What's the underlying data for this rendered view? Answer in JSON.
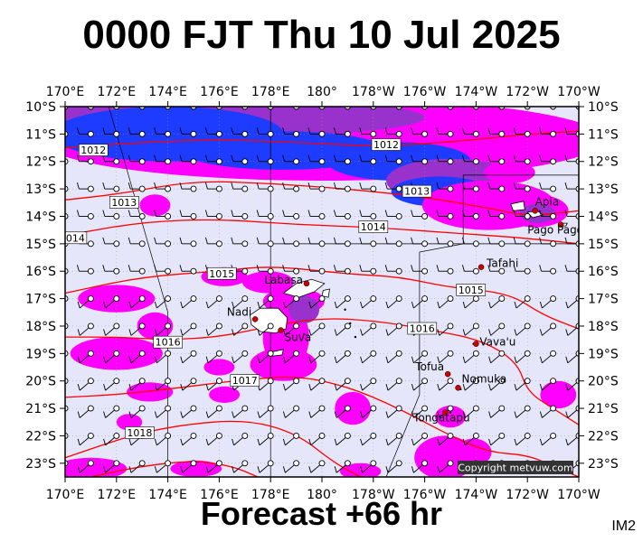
{
  "title": "0000 FJT Thu 10 Jul 2025",
  "forecast_label": "Forecast +66 hr",
  "corner_label": "IM2",
  "copyright": "Copyright metvuw.com",
  "colors": {
    "sea": "#e6e6fa",
    "rain_light": "#ff00ff",
    "rain_medium": "#9932cc",
    "rain_heavy": "#1e3cff",
    "isobar": "#ff0000",
    "land": "#ffffff",
    "place_dot": "#cc0000"
  },
  "map": {
    "lon_ticks": [
      "170°E",
      "172°E",
      "174°E",
      "176°E",
      "178°E",
      "180°",
      "178°W",
      "176°W",
      "174°W",
      "172°W",
      "170°W"
    ],
    "lat_ticks": [
      "10°S",
      "11°S",
      "12°S",
      "13°S",
      "14°S",
      "15°S",
      "16°S",
      "17°S",
      "18°S",
      "19°S",
      "20°S",
      "21°S",
      "22°S",
      "23°S"
    ],
    "extent": {
      "lon_west": 170,
      "lon_east": 190,
      "lat_north": -10,
      "lat_south": -23.5
    },
    "isobars": [
      {
        "label": "1012",
        "label_lon": 171.1,
        "label_lat": -11.6
      },
      {
        "label": "1012",
        "label_lon": 182.5,
        "label_lat": -11.4
      },
      {
        "label": "1013",
        "label_lon": 172.3,
        "label_lat": -13.5
      },
      {
        "label": "1013",
        "label_lon": 183.7,
        "label_lat": -13.1
      },
      {
        "label": "1014",
        "label_lon": 182.0,
        "label_lat": -14.4
      },
      {
        "label": "014",
        "label_lon": 170.4,
        "label_lat": -14.8
      },
      {
        "label": "1015",
        "label_lon": 176.1,
        "label_lat": -16.1
      },
      {
        "label": "1015",
        "label_lon": 185.8,
        "label_lat": -16.7
      },
      {
        "label": "1016",
        "label_lon": 174.0,
        "label_lat": -18.6
      },
      {
        "label": "1016",
        "label_lon": 183.9,
        "label_lat": -18.1
      },
      {
        "label": "1017",
        "label_lon": 177.0,
        "label_lat": -20.0
      },
      {
        "label": "1018",
        "label_lon": 172.9,
        "label_lat": -21.9
      }
    ],
    "places": [
      {
        "name": "Apia",
        "lon": 188.3,
        "lat": -13.8
      },
      {
        "name": "Pago Pago",
        "lon": 189.3,
        "lat": -14.3
      },
      {
        "name": "Tafahi",
        "lon": 186.2,
        "lat": -15.85
      },
      {
        "name": "Labasa",
        "lon": 179.4,
        "lat": -16.45
      },
      {
        "name": "Nadi",
        "lon": 177.4,
        "lat": -17.75
      },
      {
        "name": "Suva",
        "lon": 178.4,
        "lat": -18.15
      },
      {
        "name": "Vava'u",
        "lon": 186.0,
        "lat": -18.65
      },
      {
        "name": "Tofua",
        "lon": 184.9,
        "lat": -19.75
      },
      {
        "name": "Nomuka",
        "lon": 185.3,
        "lat": -20.25
      },
      {
        "name": "Tongatapu",
        "lon": 184.8,
        "lat": -21.15
      }
    ]
  }
}
